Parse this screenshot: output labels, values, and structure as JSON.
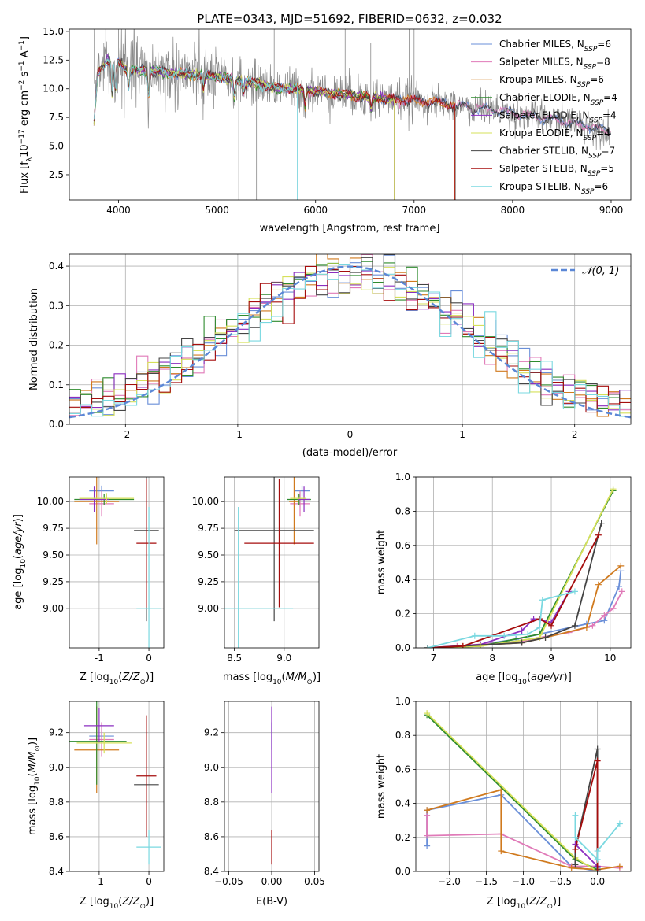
{
  "figure": {
    "title": "PLATE=0343, MJD=51692, FIBERID=0632, z=0.032"
  },
  "model_names": [
    "Chabrier MILES",
    "Salpeter MILES",
    "Kroupa MILES",
    "Chabrier ELODIE",
    "Salpeter ELODIE",
    "Kroupa ELODIE",
    "Chabrier STELIB",
    "Salpeter STELIB",
    "Kroupa STELIB"
  ],
  "colors": [
    "#6a8fd8",
    "#e07ab8",
    "#d07a1e",
    "#2e8b2e",
    "#8b2ec0",
    "#d6e05a",
    "#444444",
    "#a50d0d",
    "#7ad8e0"
  ],
  "chart_data": [
    {
      "type": "line",
      "xlabel": "wavelength [Angstrom, rest frame]",
      "ylabel": "Flux [f$_\\lambda$10$^{-17}$ erg cm$^{-2}$ s$^{-1}$ A$^{-1}$]",
      "xlim": [
        3500,
        9200
      ],
      "ylim": [
        0.3,
        15.2
      ],
      "xticks": [
        4000,
        5000,
        6000,
        7000,
        8000,
        9000
      ],
      "yticks": [
        2.5,
        5.0,
        7.5,
        10.0,
        12.5,
        15.0
      ],
      "legend_position": "upper-right",
      "legend": [
        {
          "label": "Chabrier MILES",
          "n_ssp": 6
        },
        {
          "label": "Salpeter MILES",
          "n_ssp": 8
        },
        {
          "label": "Kroupa MILES",
          "n_ssp": 6
        },
        {
          "label": "Chabrier ELODIE",
          "n_ssp": 4
        },
        {
          "label": "Salpeter ELODIE",
          "n_ssp": 4
        },
        {
          "label": "Kroupa ELODIE",
          "n_ssp": 4
        },
        {
          "label": "Chabrier STELIB",
          "n_ssp": 7
        },
        {
          "label": "Salpeter STELIB",
          "n_ssp": 5
        },
        {
          "label": "Kroupa STELIB",
          "n_ssp": 6
        }
      ],
      "legend_suffix": ", N",
      "legend_subscript": "SSP",
      "legend_eq": "=",
      "spectrum_continuum": {
        "x": [
          3750,
          3900,
          4000,
          4100,
          4300,
          4500,
          4800,
          5000,
          5300,
          5600,
          6000,
          6300,
          6600,
          7000,
          7500,
          8000,
          8500,
          9000
        ],
        "y": [
          11.0,
          12.6,
          12.3,
          11.6,
          11.6,
          11.4,
          11.2,
          11.0,
          10.6,
          10.1,
          9.8,
          9.5,
          9.2,
          9.0,
          8.5,
          7.9,
          7.2,
          6.3
        ]
      },
      "model_end_wavelengths": [
        9000,
        9000,
        7420,
        6800,
        6800,
        6800,
        9000,
        7420,
        5820
      ]
    },
    {
      "type": "histogram",
      "xlabel": "(data-model)/error",
      "ylabel": "Normed distribution",
      "xlim": [
        -2.5,
        2.5
      ],
      "ylim": [
        0,
        0.43
      ],
      "xticks": [
        -2,
        -1,
        0,
        1,
        2
      ],
      "yticks": [
        0.0,
        0.1,
        0.2,
        0.3,
        0.4
      ],
      "bin_width": 0.1,
      "reference_curve": {
        "label": "𝒩(0, 1)",
        "mean": 0,
        "sigma": 1
      },
      "legend_position": "upper-right"
    },
    {
      "type": "errorbar",
      "xlabel": "Z [log10(Z/Z⊙)]",
      "ylabel": "age  [log10(age/yr)]",
      "xlim": [
        -1.6,
        0.3
      ],
      "ylim": [
        8.63,
        10.23
      ],
      "xticks": [
        -1,
        0
      ],
      "yticks": [
        9.0,
        9.25,
        9.5,
        9.75,
        10.0
      ],
      "points": [
        {
          "x": -0.95,
          "y": 10.1,
          "xerr": 0.25,
          "yerr": 0.05
        },
        {
          "x": -0.95,
          "y": 9.98,
          "xerr": 0.25,
          "yerr": 0.12
        },
        {
          "x": -1.05,
          "y": 10.0,
          "xerr": 0.45,
          "yerr": 0.4
        },
        {
          "x": -0.9,
          "y": 10.02,
          "xerr": 0.6,
          "yerr": 0.05
        },
        {
          "x": -1.1,
          "y": 10.02,
          "xerr": 0.3,
          "yerr": 0.12
        },
        {
          "x": -0.85,
          "y": 10.03,
          "xerr": 0.55,
          "yerr": 0.05
        },
        {
          "x": -0.05,
          "y": 9.73,
          "xerr": 0.25,
          "yerr": 0.85
        },
        {
          "x": -0.05,
          "y": 9.61,
          "xerr": 0.2,
          "yerr": 0.6
        },
        {
          "x": 0.0,
          "y": 9.0,
          "xerr": 0.25,
          "yerr": 0.95
        }
      ]
    },
    {
      "type": "errorbar",
      "xlabel": "mass [log10(M/M⊙)]",
      "ylabel": "",
      "xlim": [
        8.4,
        9.35
      ],
      "ylim": [
        8.63,
        10.23
      ],
      "xticks": [
        8.5,
        9.0
      ],
      "yticks": [
        9.0,
        9.25,
        9.5,
        9.75,
        10.0
      ],
      "points": [
        {
          "x": 9.18,
          "y": 10.1,
          "xerr": 0.08,
          "yerr": 0.05
        },
        {
          "x": 9.16,
          "y": 9.98,
          "xerr": 0.1,
          "yerr": 0.12
        },
        {
          "x": 9.1,
          "y": 10.0,
          "xerr": 0.05,
          "yerr": 0.4
        },
        {
          "x": 9.15,
          "y": 10.02,
          "xerr": 0.12,
          "yerr": 0.05
        },
        {
          "x": 9.2,
          "y": 10.02,
          "xerr": 0.06,
          "yerr": 0.12
        },
        {
          "x": 9.14,
          "y": 10.03,
          "xerr": 0.08,
          "yerr": 0.05
        },
        {
          "x": 8.9,
          "y": 9.73,
          "xerr": 0.4,
          "yerr": 0.85
        },
        {
          "x": 8.95,
          "y": 9.61,
          "xerr": 0.35,
          "yerr": 0.6
        },
        {
          "x": 8.54,
          "y": 9.0,
          "xerr": 0.55,
          "yerr": 0.95
        }
      ]
    },
    {
      "type": "line",
      "xlabel": "age  [log10(age/yr)]",
      "ylabel": "mass weight",
      "xlim": [
        6.7,
        10.35
      ],
      "ylim": [
        0,
        1.0
      ],
      "xticks": [
        7,
        8,
        9,
        10
      ],
      "yticks": [
        0.0,
        0.2,
        0.4,
        0.6,
        0.8,
        1.0
      ],
      "series": [
        {
          "x": [
            6.9,
            7.6,
            8.4,
            8.8,
            9.6,
            9.9,
            10.15,
            10.18
          ],
          "y": [
            0.0,
            0.01,
            0.05,
            0.08,
            0.14,
            0.16,
            0.36,
            0.45
          ]
        },
        {
          "x": [
            6.9,
            7.4,
            8.5,
            8.8,
            9.3,
            9.7,
            9.9,
            10.05,
            10.2
          ],
          "y": [
            0.0,
            0.01,
            0.04,
            0.06,
            0.09,
            0.13,
            0.19,
            0.23,
            0.33
          ]
        },
        {
          "x": [
            6.9,
            7.5,
            8.5,
            8.9,
            9.6,
            9.8,
            10.18
          ],
          "y": [
            0.0,
            0.01,
            0.03,
            0.06,
            0.12,
            0.37,
            0.48
          ]
        },
        {
          "x": [
            6.9,
            7.8,
            8.8,
            10.05
          ],
          "y": [
            0.0,
            0.01,
            0.08,
            0.92
          ]
        },
        {
          "x": [
            6.9,
            7.8,
            8.5,
            8.7,
            9.0,
            9.3
          ],
          "y": [
            0.0,
            0.02,
            0.1,
            0.17,
            0.15,
            0.33
          ]
        },
        {
          "x": [
            6.9,
            7.8,
            8.8,
            10.05
          ],
          "y": [
            0.0,
            0.01,
            0.06,
            0.93
          ]
        },
        {
          "x": [
            6.9,
            8.5,
            8.9,
            9.4,
            9.85
          ],
          "y": [
            0.0,
            0.03,
            0.06,
            0.13,
            0.73
          ]
        },
        {
          "x": [
            6.9,
            7.5,
            8.8,
            9.0,
            9.8
          ],
          "y": [
            0.0,
            0.01,
            0.17,
            0.13,
            0.66
          ]
        },
        {
          "x": [
            6.9,
            7.7,
            8.2,
            8.6,
            8.8,
            8.85,
            9.4
          ],
          "y": [
            0.0,
            0.07,
            0.07,
            0.08,
            0.12,
            0.28,
            0.33
          ]
        }
      ]
    },
    {
      "type": "errorbar",
      "xlabel": "Z [log10(Z/Z⊙)]",
      "ylabel": "mass [log10(M/M⊙)]",
      "xlim": [
        -1.6,
        0.3
      ],
      "ylim": [
        8.4,
        9.38
      ],
      "xticks": [
        -1,
        0
      ],
      "yticks": [
        8.4,
        8.6,
        8.8,
        9.0,
        9.2
      ],
      "points": [
        {
          "x": -0.95,
          "y": 9.18,
          "xerr": 0.25,
          "yerr": 0.08
        },
        {
          "x": -0.95,
          "y": 9.16,
          "xerr": 0.25,
          "yerr": 0.1
        },
        {
          "x": -1.05,
          "y": 9.1,
          "xerr": 0.45,
          "yerr": 0.25
        },
        {
          "x": -1.05,
          "y": 9.15,
          "xerr": 0.6,
          "yerr": 0.25
        },
        {
          "x": -1.0,
          "y": 9.24,
          "xerr": 0.3,
          "yerr": 0.1
        },
        {
          "x": -0.9,
          "y": 9.14,
          "xerr": 0.55,
          "yerr": 0.06
        },
        {
          "x": -0.05,
          "y": 8.9,
          "xerr": 0.25,
          "yerr": 0.3
        },
        {
          "x": -0.05,
          "y": 8.95,
          "xerr": 0.2,
          "yerr": 0.35
        },
        {
          "x": 0.0,
          "y": 8.54,
          "xerr": 0.25,
          "yerr": 0.1
        }
      ]
    },
    {
      "type": "errorbar",
      "xlabel": "E(B-V)",
      "ylabel": "",
      "xlim": [
        -0.055,
        0.055
      ],
      "ylim": [
        8.4,
        9.38
      ],
      "xticks": [
        -0.05,
        0.0,
        0.05
      ],
      "yticks": [
        8.4,
        8.6,
        8.8,
        9.0,
        9.2
      ],
      "points": [
        {
          "x": 0.0,
          "y": 9.18,
          "xerr": 0,
          "yerr": 0.08
        },
        {
          "x": 0.0,
          "y": 9.1,
          "xerr": 0,
          "yerr": 0.25
        },
        {
          "x": 0.0,
          "y": 8.54,
          "xerr": 0,
          "yerr": 0.1
        }
      ]
    },
    {
      "type": "line",
      "xlabel": "Z [log10(Z/Z⊙)]",
      "ylabel": "mass weight",
      "xlim": [
        -2.45,
        0.45
      ],
      "ylim": [
        0,
        1.0
      ],
      "xticks": [
        -2.0,
        -1.5,
        -1.0,
        -0.5,
        0.0
      ],
      "yticks": [
        0.0,
        0.2,
        0.4,
        0.6,
        0.8,
        1.0
      ],
      "series": [
        {
          "x": [
            -2.3,
            -2.3,
            -1.3,
            -0.35,
            0.0,
            0.0
          ],
          "y": [
            0.15,
            0.36,
            0.45,
            0.03,
            0.0,
            0.02
          ]
        },
        {
          "x": [
            -2.3,
            -2.3,
            -1.3,
            -0.35,
            0.0,
            0.3
          ],
          "y": [
            0.33,
            0.21,
            0.22,
            0.03,
            0.03,
            0.02
          ]
        },
        {
          "x": [
            -2.3,
            -1.3,
            -1.3,
            -0.35,
            0.0,
            0.3
          ],
          "y": [
            0.36,
            0.48,
            0.12,
            0.02,
            0.01,
            0.03
          ]
        },
        {
          "x": [
            -2.3,
            -0.3,
            0.0
          ],
          "y": [
            0.92,
            0.07,
            0.01
          ]
        },
        {
          "x": [
            -0.3,
            0.0,
            0.0
          ],
          "y": [
            0.16,
            0.03,
            0.0
          ]
        },
        {
          "x": [
            -2.3,
            -0.3,
            0.0
          ],
          "y": [
            0.93,
            0.08,
            0.0
          ]
        },
        {
          "x": [
            -0.3,
            -0.3,
            0.0,
            0.0
          ],
          "y": [
            0.04,
            0.13,
            0.72,
            0.01
          ]
        },
        {
          "x": [
            -0.3,
            0.0,
            0.0
          ],
          "y": [
            0.13,
            0.65,
            0.0
          ]
        },
        {
          "x": [
            -0.3,
            -0.3,
            0.0,
            0.0,
            0.3
          ],
          "y": [
            0.33,
            0.2,
            0.07,
            0.12,
            0.28
          ]
        }
      ]
    }
  ]
}
